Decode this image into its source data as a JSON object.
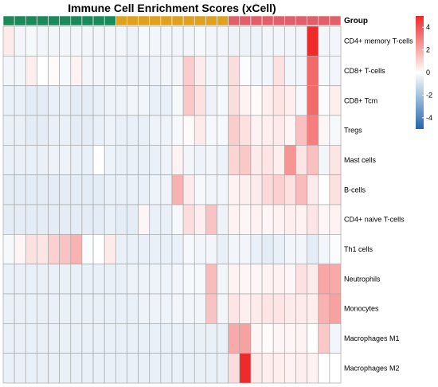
{
  "chart_data": {
    "type": "heatmap",
    "title": "Immune Cell Enrichment Scores (xCell)",
    "group_label": "Group",
    "groups": [
      {
        "color": "#1b8a5a",
        "count": 10
      },
      {
        "color": "#e0a020",
        "count": 10
      },
      {
        "color": "#e0606a",
        "count": 10
      }
    ],
    "rows": [
      "CD4+ memory T-cells",
      "CD8+ T-cells",
      "CD8+ Tcm",
      "Tregs",
      "Mast cells",
      "B-cells",
      "CD4+ naive T-cells",
      "Th1 cells",
      "Neutrophils",
      "Monocytes",
      "Macrophages M1",
      "Macrophages M2"
    ],
    "values": [
      [
        0.5,
        -0.3,
        -0.2,
        -0.3,
        -0.3,
        -0.3,
        -0.3,
        -0.3,
        -0.3,
        -0.3,
        -0.3,
        -0.4,
        -0.2,
        -0.3,
        -0.3,
        -0.3,
        -0.3,
        -0.2,
        -0.3,
        -0.3,
        -0.4,
        -0.4,
        -0.4,
        -0.3,
        -0.3,
        -0.3,
        -0.3,
        5.0,
        -0.3,
        -0.3
      ],
      [
        -0.3,
        -0.3,
        0.4,
        0.0,
        0.1,
        -0.2,
        0.3,
        -0.3,
        -0.3,
        -0.3,
        -0.4,
        -0.4,
        -0.4,
        -0.4,
        -0.3,
        -0.3,
        1.2,
        0.5,
        -0.3,
        -0.3,
        0.8,
        -0.1,
        -0.3,
        -0.3,
        0.7,
        -0.3,
        -0.3,
        3.5,
        -0.2,
        -0.3
      ],
      [
        -0.5,
        -0.5,
        -0.6,
        -0.6,
        -0.5,
        -0.5,
        -0.6,
        -0.6,
        -0.5,
        -0.4,
        -0.4,
        -0.3,
        -0.3,
        -0.5,
        -0.5,
        -0.2,
        1.3,
        0.7,
        -0.4,
        -0.2,
        0.8,
        0.3,
        0.1,
        0.4,
        0.6,
        0.4,
        -0.2,
        3.5,
        -0.1,
        0.4
      ],
      [
        -0.5,
        -0.5,
        -0.6,
        -0.6,
        -0.5,
        -0.5,
        -0.6,
        -0.6,
        -0.5,
        -0.4,
        -0.5,
        -0.5,
        -0.5,
        -0.4,
        -0.4,
        -0.2,
        0.1,
        0.5,
        -0.2,
        -0.2,
        1.2,
        0.7,
        0.3,
        0.4,
        0.5,
        0.2,
        1.5,
        3.0,
        0.2,
        -0.2
      ],
      [
        -0.5,
        -0.5,
        -0.5,
        -0.5,
        -0.4,
        -0.4,
        -0.5,
        -0.5,
        0.0,
        -0.4,
        -0.5,
        -0.5,
        -0.5,
        -0.5,
        -0.4,
        0.3,
        -0.3,
        -0.4,
        -0.3,
        -0.4,
        1.0,
        1.3,
        0.5,
        0.6,
        0.4,
        2.5,
        0.6,
        1.5,
        -0.3,
        0.6
      ],
      [
        -0.6,
        -0.6,
        -0.6,
        -0.6,
        -0.6,
        -0.6,
        -0.6,
        -0.6,
        -0.6,
        -0.5,
        -0.5,
        -0.5,
        -0.5,
        -0.4,
        -0.4,
        1.8,
        0.5,
        -0.2,
        -0.3,
        -0.3,
        0.3,
        0.4,
        0.5,
        0.9,
        1.1,
        0.7,
        1.6,
        0.5,
        0.0,
        0.7
      ],
      [
        -0.6,
        -0.6,
        -0.6,
        -0.6,
        -0.6,
        -0.6,
        -0.6,
        -0.6,
        -0.6,
        -0.5,
        -0.6,
        -0.6,
        0.2,
        -0.5,
        -0.5,
        -0.2,
        0.8,
        0.4,
        1.4,
        -0.4,
        0.3,
        0.2,
        0.3,
        0.2,
        0.3,
        0.4,
        0.3,
        0.6,
        0.2,
        0.3
      ],
      [
        -0.2,
        0.2,
        0.7,
        0.6,
        1.1,
        1.4,
        1.8,
        -0.1,
        0.0,
        0.5,
        -0.5,
        -0.5,
        -0.5,
        -0.5,
        -0.5,
        -0.5,
        -0.2,
        -0.3,
        -0.3,
        -0.5,
        -0.3,
        -0.3,
        -0.5,
        -0.6,
        -0.5,
        -0.3,
        -0.3,
        -0.6,
        -0.3,
        -0.1
      ],
      [
        -0.5,
        -0.5,
        -0.5,
        -0.5,
        -0.5,
        -0.5,
        -0.5,
        -0.5,
        -0.5,
        -0.5,
        -0.5,
        -0.4,
        -0.4,
        -0.4,
        -0.4,
        -0.3,
        -0.2,
        -0.2,
        1.6,
        -0.3,
        0.3,
        0.2,
        0.2,
        0.3,
        0.3,
        0.2,
        0.7,
        0.5,
        2.1,
        2.0
      ],
      [
        -0.5,
        -0.5,
        -0.5,
        -0.5,
        -0.5,
        -0.5,
        -0.5,
        -0.5,
        -0.5,
        -0.5,
        -0.5,
        -0.5,
        -0.4,
        -0.4,
        -0.4,
        -0.3,
        -0.3,
        -0.3,
        1.4,
        -0.3,
        0.6,
        0.4,
        0.5,
        0.6,
        0.6,
        0.5,
        0.5,
        0.4,
        1.8,
        2.2
      ],
      [
        -0.5,
        -0.5,
        -0.5,
        -0.5,
        -0.5,
        -0.5,
        -0.5,
        -0.5,
        -0.5,
        -0.5,
        -0.5,
        -0.5,
        -0.5,
        -0.5,
        -0.5,
        -0.5,
        -0.5,
        -0.5,
        -0.5,
        -0.5,
        2.0,
        2.2,
        0.2,
        0.1,
        0.2,
        0.2,
        0.3,
        0.0,
        1.3,
        -0.3
      ],
      [
        -0.5,
        -0.5,
        -0.5,
        -0.5,
        -0.5,
        -0.5,
        -0.5,
        -0.5,
        -0.5,
        -0.5,
        -0.5,
        -0.5,
        -0.5,
        -0.5,
        -0.5,
        -0.5,
        -0.5,
        -0.5,
        -0.5,
        -0.5,
        0.8,
        5.0,
        0.5,
        0.4,
        0.4,
        0.3,
        0.4,
        0.3,
        0.0,
        0.0
      ]
    ],
    "color_scale": {
      "low": "#2166ac",
      "mid": "#ffffff",
      "high": "#ee2a2a",
      "min": -5,
      "max": 5
    },
    "legend_ticks": [
      "4",
      "2",
      "0",
      "-2",
      "-4"
    ],
    "legend_placement": "top-right"
  }
}
